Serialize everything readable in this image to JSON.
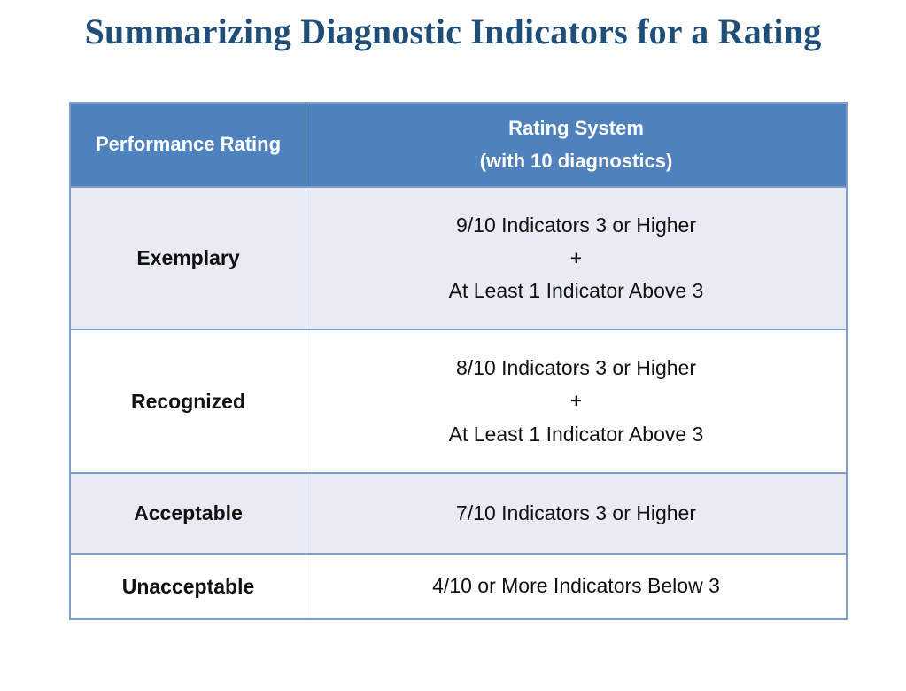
{
  "slide": {
    "title": "Summarizing Diagnostic Indicators for a Rating"
  },
  "table": {
    "header": {
      "col1": "Performance Rating",
      "col2_line1": "Rating System",
      "col2_line2": "(with 10 diagnostics)"
    },
    "rows": [
      {
        "label": "Exemplary",
        "lines": [
          "9/10 Indicators 3 or Higher",
          "+",
          "At Least 1 Indicator Above 3"
        ]
      },
      {
        "label": "Recognized",
        "lines": [
          "8/10 Indicators 3 or Higher",
          "+",
          "At Least 1 Indicator Above 3"
        ]
      },
      {
        "label": "Acceptable",
        "lines": [
          "7/10 Indicators 3 or Higher"
        ]
      },
      {
        "label": "Unacceptable",
        "lines": [
          "4/10 or More Indicators Below 3"
        ]
      }
    ]
  },
  "colors": {
    "title_text": "#1F4E79",
    "header_background": "#4F81BD",
    "header_text": "#FFFFFF",
    "banded_row_background": "#E9EBF4",
    "plain_row_background": "#FFFFFF",
    "table_border": "#7F9DC9",
    "body_text": "#111111",
    "slide_background": "#FFFFFF"
  }
}
